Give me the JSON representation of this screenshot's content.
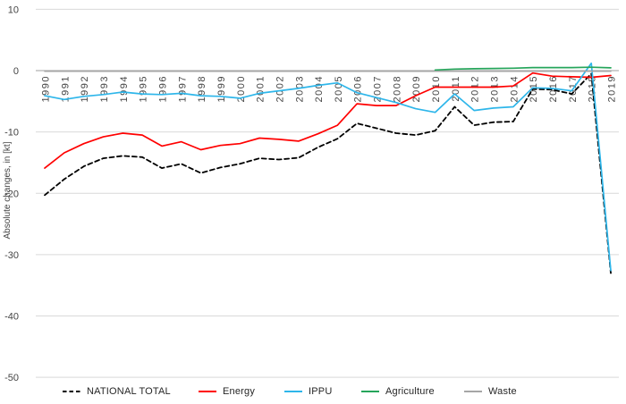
{
  "chart_data": {
    "type": "line",
    "title": "",
    "xlabel": "",
    "ylabel": "Absolute changes, in [kt]",
    "ylim": [
      -50,
      10
    ],
    "yticks": [
      10,
      0,
      -10,
      -20,
      -30,
      -40,
      -50
    ],
    "grid": "horizontal-light-gray",
    "legend_position": "bottom",
    "x": [
      1990,
      1991,
      1992,
      1993,
      1994,
      1995,
      1996,
      1997,
      1998,
      1999,
      2000,
      2001,
      2002,
      2003,
      2004,
      2005,
      2006,
      2007,
      2008,
      2009,
      2010,
      2011,
      2012,
      2013,
      2014,
      2015,
      2016,
      2017,
      2018,
      2019
    ],
    "series": [
      {
        "name": "NATIONAL TOTAL",
        "color": "#000000",
        "dash": "5 3.5",
        "width": 1.8,
        "values": [
          -20.3,
          -17.7,
          -15.6,
          -14.3,
          -13.9,
          -14.1,
          -15.9,
          -15.2,
          -16.7,
          -15.8,
          -15.2,
          -14.3,
          -14.5,
          -14.2,
          -12.5,
          -11.1,
          -8.6,
          -9.4,
          -10.2,
          -10.5,
          -9.8,
          -5.9,
          -8.9,
          -8.4,
          -8.3,
          -3.0,
          -3.1,
          -3.8,
          -0.5,
          -33.0
        ]
      },
      {
        "name": "Energy",
        "color": "#ff0000",
        "dash": null,
        "width": 1.7,
        "values": [
          -15.9,
          -13.4,
          -11.9,
          -10.8,
          -10.2,
          -10.5,
          -12.3,
          -11.6,
          -12.9,
          -12.2,
          -11.9,
          -11.0,
          -11.2,
          -11.5,
          -10.3,
          -8.9,
          -5.4,
          -5.7,
          -5.7,
          -4.1,
          -2.7,
          -2.7,
          -2.7,
          -2.7,
          -2.5,
          -0.4,
          -0.9,
          -1.0,
          -1.1,
          -0.8
        ]
      },
      {
        "name": "IPPU",
        "color": "#2eb6ea",
        "dash": null,
        "width": 1.7,
        "values": [
          -4.1,
          -4.7,
          -4.2,
          -3.9,
          -3.5,
          -3.8,
          -3.9,
          -3.7,
          -4.1,
          -4.2,
          -4.5,
          -3.7,
          -3.3,
          -2.9,
          -2.4,
          -2.0,
          -3.6,
          -4.4,
          -5.2,
          -6.2,
          -6.8,
          -3.8,
          -6.5,
          -6.1,
          -5.9,
          -2.8,
          -2.9,
          -3.3,
          1.2,
          -32.6
        ]
      },
      {
        "name": "Agriculture",
        "color": "#26a55b",
        "dash": null,
        "width": 1.7,
        "values": [
          null,
          null,
          null,
          null,
          null,
          null,
          null,
          null,
          null,
          null,
          null,
          null,
          null,
          null,
          null,
          null,
          null,
          null,
          null,
          null,
          0.1,
          0.25,
          0.3,
          0.35,
          0.4,
          0.5,
          0.5,
          0.5,
          0.55,
          0.45
        ]
      },
      {
        "name": "Waste",
        "color": "#a6a6a6",
        "dash": null,
        "width": 1.5,
        "values": [
          -0.1,
          -0.1,
          -0.1,
          -0.1,
          -0.1,
          -0.1,
          -0.1,
          -0.1,
          -0.1,
          -0.1,
          -0.1,
          -0.1,
          -0.1,
          -0.1,
          -0.1,
          -0.1,
          -0.1,
          -0.1,
          -0.1,
          -0.1,
          -0.1,
          -0.1,
          -0.1,
          -0.1,
          -0.1,
          -0.1,
          -0.1,
          -0.1,
          -0.1,
          -0.1
        ]
      }
    ],
    "colors": {
      "gridline": "#d9d9d9",
      "zero_axis": "#bfbfbf",
      "tick_label": "#444444",
      "axis_title": "#444444"
    }
  }
}
